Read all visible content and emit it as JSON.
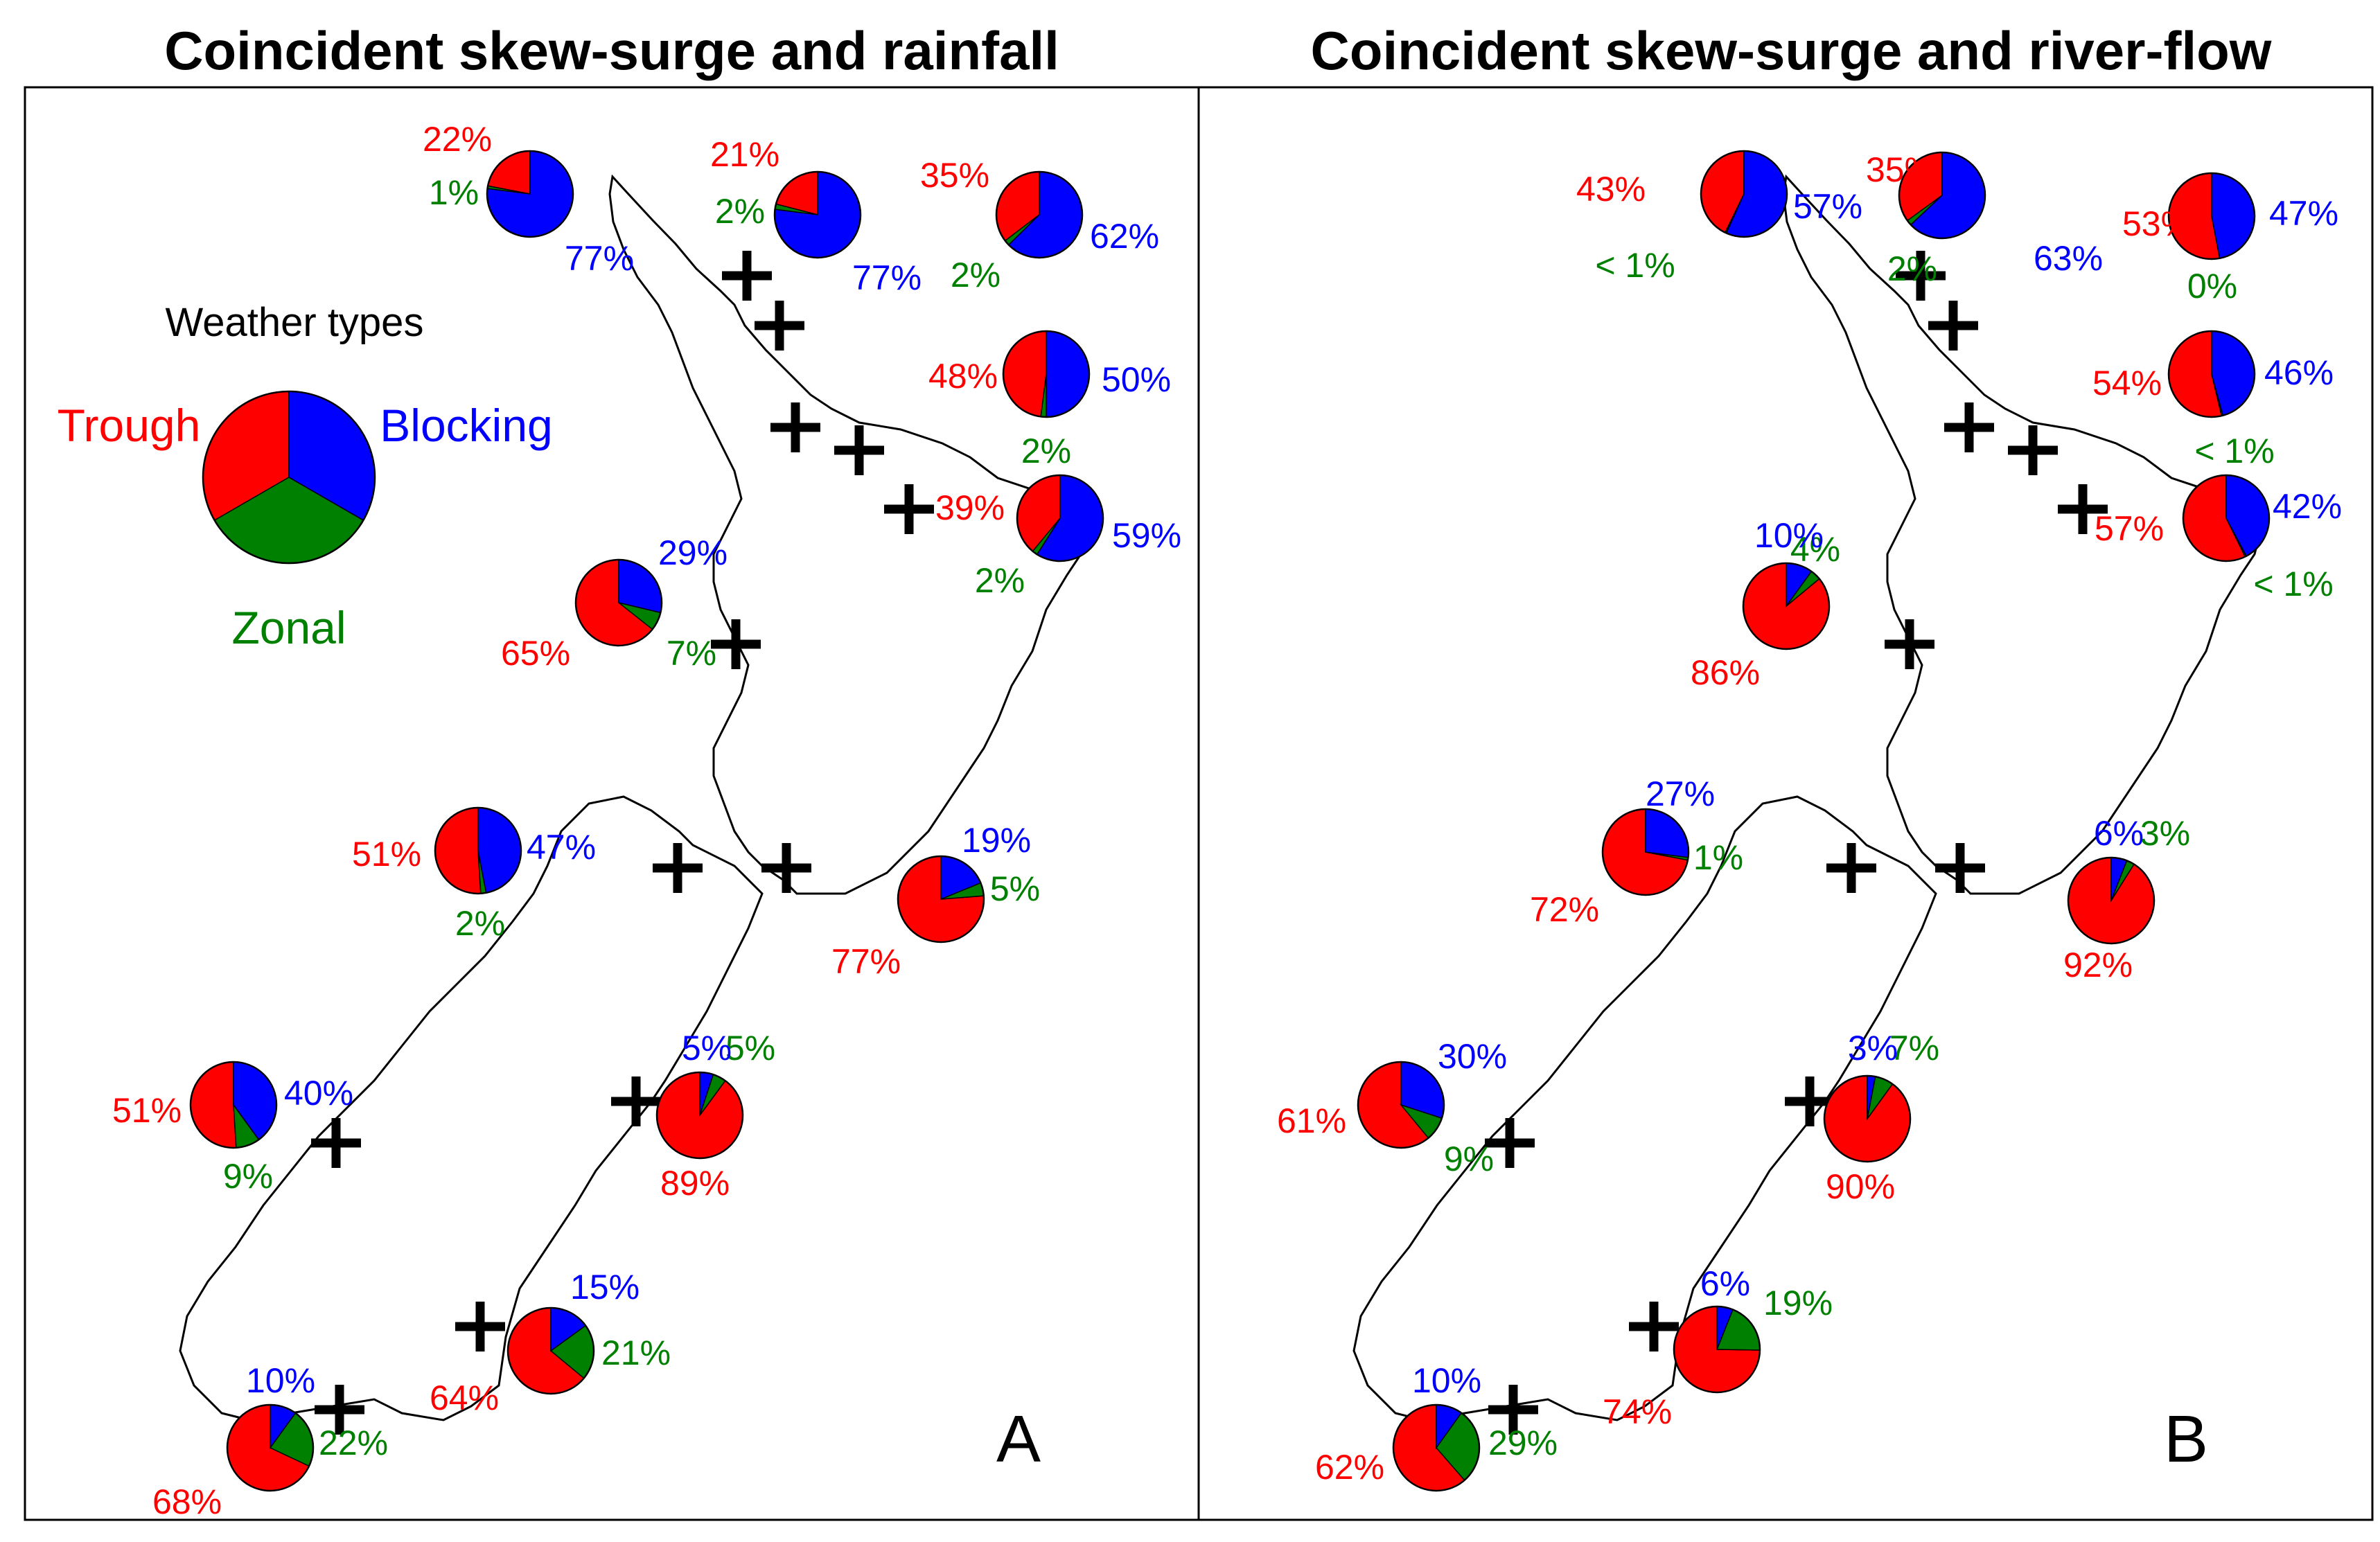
{
  "colors": {
    "trough": "#ff0000",
    "blocking": "#0000ff",
    "zonal": "#008000"
  },
  "legend": {
    "title": "Weather types",
    "trough_label": "Trough",
    "blocking_label": "Blocking",
    "zonal_label": "Zonal",
    "values": [
      33.3,
      33.3,
      33.3
    ]
  },
  "chart_data": [
    {
      "type": "pie",
      "panel": "A",
      "title": "Coincident skew-surge and rainfall",
      "order": [
        "trough",
        "zonal",
        "blocking"
      ],
      "sites": [
        {
          "values": [
            22,
            1,
            77
          ],
          "labels": [
            "22%",
            "1%",
            "77%"
          ]
        },
        {
          "values": [
            21,
            2,
            77
          ],
          "labels": [
            "21%",
            "2%",
            "77%"
          ]
        },
        {
          "values": [
            35,
            2,
            62
          ],
          "labels": [
            "35%",
            "2%",
            "62%"
          ]
        },
        {
          "values": [
            48,
            2,
            50
          ],
          "labels": [
            "48%",
            "2%",
            "50%"
          ]
        },
        {
          "values": [
            39,
            2,
            59
          ],
          "labels": [
            "39%",
            "2%",
            "59%"
          ]
        },
        {
          "values": [
            65,
            7,
            29
          ],
          "labels": [
            "65%",
            "7%",
            "29%"
          ]
        },
        {
          "values": [
            51,
            2,
            47
          ],
          "labels": [
            "51%",
            "2%",
            "47%"
          ]
        },
        {
          "values": [
            77,
            5,
            19
          ],
          "labels": [
            "77%",
            "5%",
            "19%"
          ]
        },
        {
          "values": [
            51,
            9,
            40
          ],
          "labels": [
            "51%",
            "9%",
            "40%"
          ]
        },
        {
          "values": [
            89,
            5,
            5
          ],
          "labels": [
            "89%",
            "5%",
            "5%"
          ]
        },
        {
          "values": [
            64,
            21,
            15
          ],
          "labels": [
            "64%",
            "21%",
            "15%"
          ]
        },
        {
          "values": [
            68,
            22,
            10
          ],
          "labels": [
            "68%",
            "22%",
            "10%"
          ]
        }
      ]
    },
    {
      "type": "pie",
      "panel": "B",
      "title": "Coincident skew-surge and river-flow",
      "order": [
        "trough",
        "zonal",
        "blocking"
      ],
      "sites": [
        {
          "values": [
            43,
            0.5,
            57
          ],
          "labels": [
            "43%",
            "< 1%",
            "57%"
          ]
        },
        {
          "values": [
            35,
            2,
            63
          ],
          "labels": [
            "35%",
            "2%",
            "63%"
          ]
        },
        {
          "values": [
            53,
            0,
            47
          ],
          "labels": [
            "53%",
            "0%",
            "47%"
          ]
        },
        {
          "values": [
            54,
            0.5,
            46
          ],
          "labels": [
            "54%",
            "< 1%",
            "46%"
          ]
        },
        {
          "values": [
            57,
            0.5,
            42
          ],
          "labels": [
            "57%",
            "< 1%",
            "42%"
          ]
        },
        {
          "values": [
            86,
            4,
            10
          ],
          "labels": [
            "86%",
            "4%",
            "10%"
          ]
        },
        {
          "values": [
            72,
            1,
            27
          ],
          "labels": [
            "72%",
            "1%",
            "27%"
          ]
        },
        {
          "values": [
            92,
            3,
            6
          ],
          "labels": [
            "92%",
            "3%",
            "6%"
          ]
        },
        {
          "values": [
            61,
            9,
            30
          ],
          "labels": [
            "61%",
            "9%",
            "30%"
          ]
        },
        {
          "values": [
            90,
            7,
            3
          ],
          "labels": [
            "90%",
            "7%",
            "3%"
          ]
        },
        {
          "values": [
            74,
            19,
            6
          ],
          "labels": [
            "74%",
            "19%",
            "6%"
          ]
        },
        {
          "values": [
            62,
            29,
            10
          ],
          "labels": [
            "62%",
            "29%",
            "10%"
          ]
        }
      ]
    }
  ]
}
